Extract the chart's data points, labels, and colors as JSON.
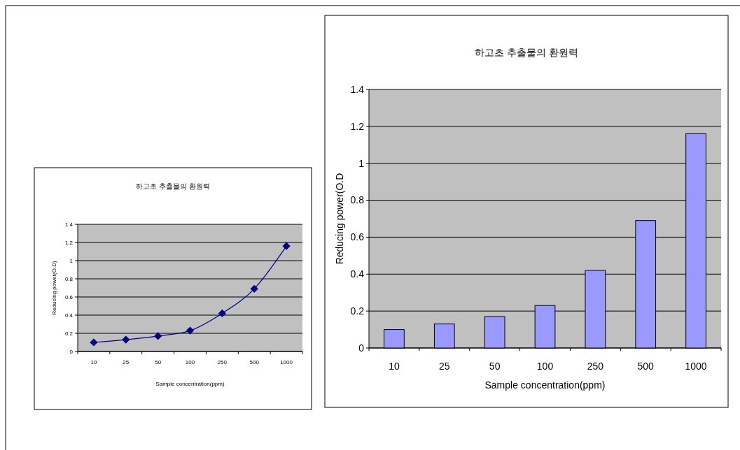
{
  "chart_data": [
    {
      "type": "line",
      "title": "하고초 추출물의 환원력",
      "xlabel": "Sample concentration(ppm)",
      "ylabel": "Reducing power(O.D)",
      "categories": [
        "10",
        "25",
        "50",
        "100",
        "250",
        "500",
        "1000"
      ],
      "series": [
        {
          "color": "#000080",
          "values": [
            0.1,
            0.13,
            0.17,
            0.23,
            0.42,
            0.69,
            1.16
          ]
        }
      ],
      "ylim": [
        0,
        1.4
      ],
      "yticks": [
        0,
        0.2,
        0.4,
        0.6,
        0.8,
        1,
        1.2,
        1.4
      ],
      "grid": "y",
      "marker": "diamond"
    },
    {
      "type": "bar",
      "title": "하고초 추출물의 환원력",
      "xlabel": "Sample concentration(ppm)",
      "ylabel": "Reducing power(O.D",
      "categories": [
        "10",
        "25",
        "50",
        "100",
        "250",
        "500",
        "1000"
      ],
      "series": [
        {
          "color": "#9999ff",
          "values": [
            0.1,
            0.13,
            0.17,
            0.23,
            0.42,
            0.69,
            1.16
          ]
        }
      ],
      "ylim": [
        0,
        1.4
      ],
      "yticks": [
        0,
        0.2,
        0.4,
        0.6,
        0.8,
        1,
        1.2,
        1.4
      ],
      "grid": "y"
    }
  ]
}
